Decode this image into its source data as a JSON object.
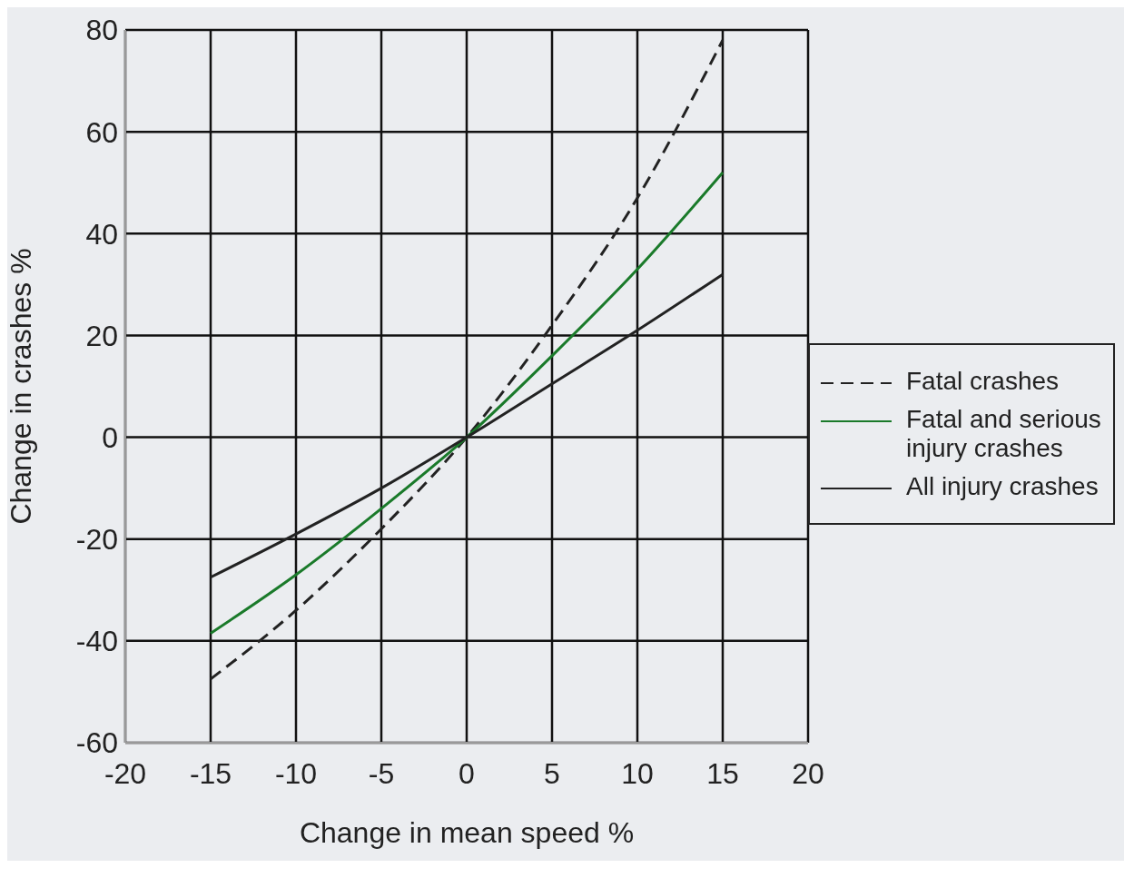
{
  "chart_data": {
    "type": "line",
    "xlabel": "Change in mean speed %",
    "ylabel": "Change in crashes %",
    "x": [
      -15,
      -10,
      -5,
      0,
      5,
      10,
      15
    ],
    "series": [
      {
        "name": "Fatal crashes",
        "color": "#222222",
        "line_style": "dashed",
        "values": [
          -47.5,
          -34,
          -18,
          0,
          22,
          47,
          78
        ]
      },
      {
        "name": "Fatal and serious injury crashes",
        "color": "#1a7a2a",
        "line_style": "solid",
        "values": [
          -38.5,
          -27,
          -14,
          0,
          16,
          33,
          52
        ]
      },
      {
        "name": "All injury crashes",
        "color": "#222222",
        "line_style": "solid",
        "values": [
          -27.5,
          -19,
          -10,
          0,
          10.5,
          21,
          32
        ]
      }
    ],
    "xlim": [
      -20,
      20
    ],
    "xticks": [
      -20,
      -15,
      -10,
      -5,
      0,
      5,
      10,
      15,
      20
    ],
    "ylim": [
      -60,
      80
    ],
    "yticks": [
      -60,
      -40,
      -20,
      0,
      20,
      40,
      60,
      80
    ],
    "grid": true,
    "legend": "right",
    "marker": "none"
  }
}
